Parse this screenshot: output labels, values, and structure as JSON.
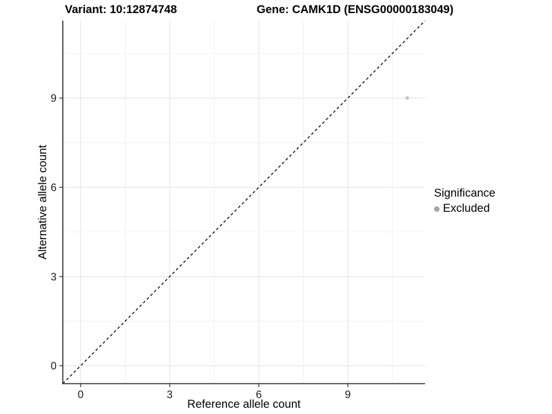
{
  "titles": {
    "variant": "Variant: 10:12874748",
    "gene": "Gene: CAMK1D (ENSG00000183049)"
  },
  "colors": {
    "background": "#ffffff",
    "major_grid": "#e7e7e7",
    "minor_grid": "#f2f2f2",
    "axis_line": "#333333",
    "tick_mark": "#333333",
    "tick_label": "#1a1a1a",
    "identity_line": "#000000",
    "point": "#c4c4c4",
    "legend_dot": "#a6a6a6"
  },
  "chart_data": {
    "type": "scatter",
    "title": "Variant: 10:12874748  |  Gene: CAMK1D (ENSG00000183049)",
    "xlabel": "Reference allele count",
    "ylabel": "Alternative allele count",
    "xlim": [
      -0.6,
      11.6
    ],
    "ylim": [
      -0.6,
      11.6
    ],
    "x_ticks": [
      0,
      3,
      6,
      9
    ],
    "y_ticks": [
      0,
      3,
      6,
      9
    ],
    "x_minor_ticks": [
      1.5,
      4.5,
      7.5,
      10.5
    ],
    "y_minor_ticks": [
      1.5,
      4.5,
      7.5,
      10.5
    ],
    "grid": true,
    "series": [
      {
        "name": "Excluded",
        "points": [
          {
            "x": 11,
            "y": 9
          }
        ]
      }
    ],
    "reference_line": {
      "kind": "identity",
      "equation": "y = x",
      "style": "dashed"
    },
    "legend": {
      "title": "Significance",
      "position": "right",
      "entries": [
        {
          "label": "Excluded"
        }
      ]
    }
  }
}
